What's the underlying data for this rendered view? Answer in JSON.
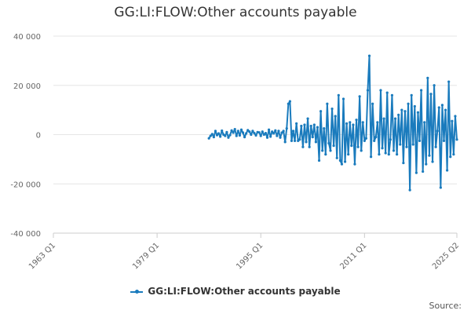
{
  "title": "GG:LI:FLOW:Other accounts payable",
  "source_label": "Source:",
  "chart_data": {
    "type": "line",
    "title": "GG:LI:FLOW:Other accounts payable",
    "xlabel": "",
    "ylabel": "",
    "x_ticks": [
      "1963 Q1",
      "1979 Q1",
      "1995 Q1",
      "2011 Q1",
      "2025 Q2"
    ],
    "y_ticks": [
      "40 000",
      "20 000",
      "0",
      "-20 000",
      "-40 000"
    ],
    "ylim": [
      -40000,
      40000
    ],
    "xlim": [
      "1963 Q1",
      "2025 Q2"
    ],
    "grid": "horizontal",
    "legend": "bottom-center",
    "colors": {
      "series": "#1a7bbd",
      "grid": "#e6e6e6",
      "axis": "#cccccc"
    },
    "series": [
      {
        "name": "GG:LI:FLOW:Other accounts payable",
        "x": [
          "1987 Q1",
          "1987 Q2",
          "1987 Q3",
          "1987 Q4",
          "1988 Q1",
          "1988 Q2",
          "1988 Q3",
          "1988 Q4",
          "1989 Q1",
          "1989 Q2",
          "1989 Q3",
          "1989 Q4",
          "1990 Q1",
          "1990 Q2",
          "1990 Q3",
          "1990 Q4",
          "1991 Q1",
          "1991 Q2",
          "1991 Q3",
          "1991 Q4",
          "1992 Q1",
          "1992 Q2",
          "1992 Q3",
          "1992 Q4",
          "1993 Q1",
          "1993 Q2",
          "1993 Q3",
          "1993 Q4",
          "1994 Q1",
          "1994 Q2",
          "1994 Q3",
          "1994 Q4",
          "1995 Q1",
          "1995 Q2",
          "1995 Q3",
          "1995 Q4",
          "1996 Q1",
          "1996 Q2",
          "1996 Q3",
          "1996 Q4",
          "1997 Q1",
          "1997 Q2",
          "1997 Q3",
          "1997 Q4",
          "1998 Q1",
          "1998 Q2",
          "1998 Q3",
          "1998 Q4",
          "1999 Q1",
          "1999 Q2",
          "1999 Q3",
          "1999 Q4",
          "2000 Q1",
          "2000 Q2",
          "2000 Q3",
          "2000 Q4",
          "2001 Q1",
          "2001 Q2",
          "2001 Q3",
          "2001 Q4",
          "2002 Q1",
          "2002 Q2",
          "2002 Q3",
          "2002 Q4",
          "2003 Q1",
          "2003 Q2",
          "2003 Q3",
          "2003 Q4",
          "2004 Q1",
          "2004 Q2",
          "2004 Q3",
          "2004 Q4",
          "2005 Q1",
          "2005 Q2",
          "2005 Q3",
          "2005 Q4",
          "2006 Q1",
          "2006 Q2",
          "2006 Q3",
          "2006 Q4",
          "2007 Q1",
          "2007 Q2",
          "2007 Q3",
          "2007 Q4",
          "2008 Q1",
          "2008 Q2",
          "2008 Q3",
          "2008 Q4",
          "2009 Q1",
          "2009 Q2",
          "2009 Q3",
          "2009 Q4",
          "2010 Q1",
          "2010 Q2",
          "2010 Q3",
          "2010 Q4",
          "2011 Q1",
          "2011 Q2",
          "2011 Q3",
          "2011 Q4",
          "2012 Q1",
          "2012 Q2",
          "2012 Q3",
          "2012 Q4",
          "2013 Q1",
          "2013 Q2",
          "2013 Q3",
          "2013 Q4",
          "2014 Q1",
          "2014 Q2",
          "2014 Q3",
          "2014 Q4",
          "2015 Q1",
          "2015 Q2",
          "2015 Q3",
          "2015 Q4",
          "2016 Q1",
          "2016 Q2",
          "2016 Q3",
          "2016 Q4",
          "2017 Q1",
          "2017 Q2",
          "2017 Q3",
          "2017 Q4",
          "2018 Q1",
          "2018 Q2",
          "2018 Q3",
          "2018 Q4",
          "2019 Q1",
          "2019 Q2",
          "2019 Q3",
          "2019 Q4",
          "2020 Q1",
          "2020 Q2",
          "2020 Q3",
          "2020 Q4",
          "2021 Q1",
          "2021 Q2",
          "2021 Q3",
          "2021 Q4",
          "2022 Q1",
          "2022 Q2",
          "2022 Q3",
          "2022 Q4",
          "2023 Q1",
          "2023 Q2",
          "2023 Q3",
          "2023 Q4",
          "2024 Q1",
          "2024 Q2",
          "2024 Q3",
          "2024 Q4",
          "2025 Q1",
          "2025 Q2"
        ],
        "values": [
          -1500,
          -500,
          200,
          -1000,
          1500,
          -200,
          500,
          -800,
          1600,
          0,
          -500,
          1000,
          -1200,
          -200,
          1700,
          800,
          2200,
          -500,
          1500,
          -300,
          2000,
          800,
          -1000,
          500,
          1800,
          1200,
          0,
          1500,
          600,
          -300,
          1000,
          900,
          -500,
          1200,
          0,
          600,
          -1200,
          2000,
          -800,
          1200,
          500,
          1700,
          -500,
          1500,
          -1200,
          800,
          1500,
          -3000,
          2500,
          12500,
          13500,
          -2500,
          1500,
          -2500,
          4500,
          -2500,
          -2000,
          3500,
          -5000,
          4000,
          -3000,
          6500,
          -5000,
          3500,
          -1000,
          4000,
          -3000,
          3000,
          -10500,
          9500,
          -6500,
          2500,
          -8000,
          12500,
          -3500,
          -6500,
          10500,
          -4500,
          7500,
          -9500,
          16000,
          -10500,
          -12000,
          14500,
          -11000,
          4500,
          -8000,
          5000,
          -4500,
          4000,
          -12000,
          6000,
          -5000,
          15500,
          -6500,
          5000,
          -2500,
          -1500,
          18000,
          32000,
          -9000,
          12500,
          -2500,
          -1000,
          5000,
          -8000,
          18000,
          -5500,
          6500,
          -7500,
          17000,
          -8000,
          -2000,
          16000,
          -6500,
          6500,
          -8000,
          8000,
          -4000,
          10000,
          -11500,
          9500,
          -5000,
          12500,
          -22500,
          16000,
          -4000,
          11500,
          -15500,
          9000,
          -2500,
          18000,
          -15000,
          5000,
          -12000,
          23000,
          -8500,
          16500,
          -11000,
          20000,
          -5000,
          1500,
          11000,
          -21500,
          12000,
          -2500,
          10000,
          -14500,
          21500,
          -9000,
          5500,
          -8000,
          7500,
          -2000
        ]
      }
    ]
  }
}
